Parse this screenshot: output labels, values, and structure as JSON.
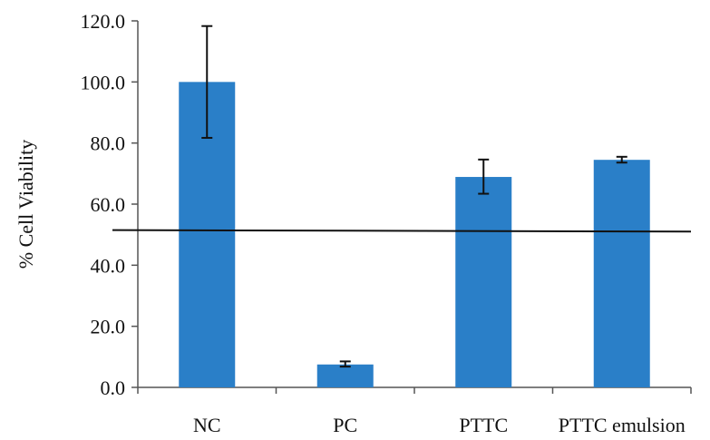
{
  "chart_data": {
    "type": "bar",
    "categories": [
      "NC",
      "PC",
      "PTTC",
      "PTTC emulsion"
    ],
    "values": [
      100.0,
      7.5,
      68.9,
      74.5
    ],
    "error_bars": [
      {
        "low": 81.7,
        "high": 118.3
      },
      {
        "low": 6.8,
        "high": 8.5
      },
      {
        "low": 63.4,
        "high": 74.6
      },
      {
        "low": 73.6,
        "high": 75.5
      }
    ],
    "reference_line": {
      "y_start": 51.5,
      "y_end": 51.0
    },
    "title": "",
    "xlabel": "",
    "ylabel": "% Cell Viability",
    "ylim": [
      0,
      120
    ],
    "yticks": [
      "0.0",
      "20.0",
      "40.0",
      "60.0",
      "80.0",
      "100.0",
      "120.0"
    ],
    "bar_color": "#2a7fc8",
    "grid": false,
    "legend": "none"
  }
}
